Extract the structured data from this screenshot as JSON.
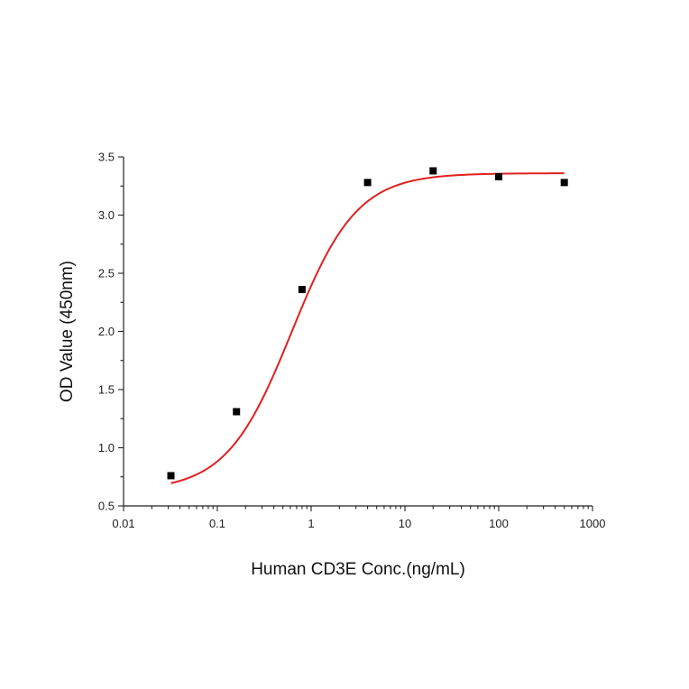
{
  "chart_data": {
    "type": "scatter",
    "xscale": "log",
    "xlabel": "Human CD3E Conc.(ng/mL)",
    "ylabel": "OD Value (450nm)",
    "xlim": [
      0.01,
      1000
    ],
    "ylim": [
      0.5,
      3.5
    ],
    "xticks": [
      {
        "value": 0.01,
        "label": "0.01"
      },
      {
        "value": 0.1,
        "label": "0.1"
      },
      {
        "value": 1,
        "label": "1"
      },
      {
        "value": 10,
        "label": "10"
      },
      {
        "value": 100,
        "label": "100"
      },
      {
        "value": 1000,
        "label": "1000"
      }
    ],
    "yticks": [
      {
        "value": 0.5,
        "label": "0.5"
      },
      {
        "value": 1.0,
        "label": "1.0"
      },
      {
        "value": 1.5,
        "label": "1.5"
      },
      {
        "value": 2.0,
        "label": "2.0"
      },
      {
        "value": 2.5,
        "label": "2.5"
      },
      {
        "value": 3.0,
        "label": "3.0"
      },
      {
        "value": 3.5,
        "label": "3.5"
      }
    ],
    "series": [
      {
        "marker": "square",
        "color": "#000000",
        "x": [
          0.032,
          0.16,
          0.8,
          4,
          20,
          100,
          500
        ],
        "y": [
          0.76,
          1.31,
          2.36,
          3.28,
          3.38,
          3.33,
          3.28
        ]
      }
    ],
    "fit_curve": {
      "color": "#e02020",
      "model": "4PL",
      "bottom": 0.63,
      "top": 3.36,
      "ec50": 0.62,
      "hill": 1.25,
      "x_range": [
        0.032,
        500
      ]
    },
    "grid": false,
    "legend": "none"
  }
}
